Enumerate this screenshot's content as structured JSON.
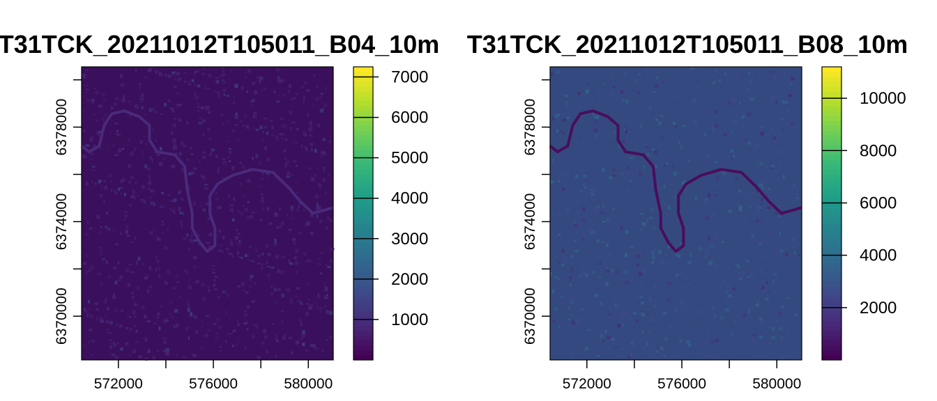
{
  "chart_data": [
    {
      "type": "heatmap",
      "title": "T31TCK_20211012T105011_B04_10m",
      "xlabel": "",
      "ylabel": "",
      "x_ticks": [
        572000,
        576000,
        580000
      ],
      "y_ticks": [
        6378000,
        6374000,
        6370000
      ],
      "x_tick_labels": [
        "572000",
        "576000",
        "580000"
      ],
      "y_tick_labels": [
        "6378000",
        "6374000",
        "6370000"
      ],
      "xlim": [
        570450,
        581050
      ],
      "ylim": [
        6368150,
        6380550
      ],
      "colorbar": {
        "palette": "viridis",
        "range": [
          0,
          7250
        ],
        "ticks": [
          1000,
          2000,
          3000,
          4000,
          5000,
          6000,
          7000
        ],
        "labels": [
          "1000",
          "2000",
          "3000",
          "4000",
          "5000",
          "6000",
          "7000"
        ]
      }
    },
    {
      "type": "heatmap",
      "title": "T31TCK_20211012T105011_B08_10m",
      "xlabel": "",
      "ylabel": "",
      "x_ticks": [
        572000,
        576000,
        580000
      ],
      "y_ticks": [
        6378000,
        6374000,
        6370000
      ],
      "x_tick_labels": [
        "572000",
        "576000",
        "580000"
      ],
      "y_tick_labels": [
        "6378000",
        "6374000",
        "6370000"
      ],
      "xlim": [
        570450,
        581050
      ],
      "ylim": [
        6368150,
        6380550
      ],
      "colorbar": {
        "palette": "viridis",
        "range": [
          0,
          11200
        ],
        "ticks": [
          2000,
          4000,
          6000,
          8000,
          10000
        ],
        "labels": [
          "2000",
          "4000",
          "6000",
          "8000",
          "10000"
        ]
      }
    }
  ],
  "colors": {
    "viridis": [
      "#440154",
      "#482878",
      "#3e4a89",
      "#31688e",
      "#26828e",
      "#1f9e89",
      "#35b779",
      "#6ece58",
      "#b5de2b",
      "#fde725"
    ],
    "b04_background": "#3a0f5c",
    "b08_background": "#34497f",
    "river_b04": "#4a2a7a",
    "river_b08": "#4a0d5c"
  }
}
